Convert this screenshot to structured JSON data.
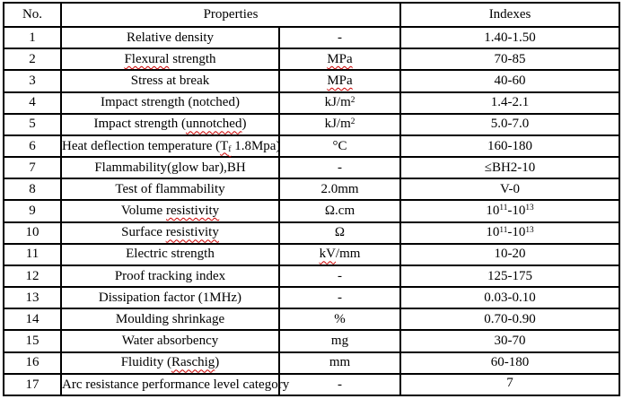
{
  "colors": {
    "background": "#ffffff",
    "text": "#000000",
    "border": "#000000",
    "squiggle": "#cc0000"
  },
  "table": {
    "header": {
      "no": "No.",
      "properties": "Properties",
      "indexes": "Indexes"
    },
    "rows": [
      {
        "no": "1",
        "property": [
          {
            "t": "Relative density"
          }
        ],
        "unit": [
          {
            "t": "-"
          }
        ],
        "index": [
          {
            "t": "1.40-1.50"
          }
        ]
      },
      {
        "no": "2",
        "property": [
          {
            "t": "Flexural",
            "c": "wavy"
          },
          {
            "t": " strength"
          }
        ],
        "unit": [
          {
            "t": "MPa",
            "c": "wavy"
          }
        ],
        "index": [
          {
            "t": "70-85"
          }
        ]
      },
      {
        "no": "3",
        "property": [
          {
            "t": "Stress at break"
          }
        ],
        "unit": [
          {
            "t": "MPa",
            "c": "wavy"
          }
        ],
        "index": [
          {
            "t": "40-60"
          }
        ]
      },
      {
        "no": "4",
        "property": [
          {
            "t": "Impact strength (notched)"
          }
        ],
        "unit": [
          {
            "t": "kJ/m"
          },
          {
            "t": "2",
            "c": "sup"
          }
        ],
        "index": [
          {
            "t": "1.4-2.1"
          }
        ]
      },
      {
        "no": "5",
        "property": [
          {
            "t": "Impact strength ("
          },
          {
            "t": "unnotched",
            "c": "wavy"
          },
          {
            "t": ")"
          }
        ],
        "unit": [
          {
            "t": "kJ/m"
          },
          {
            "t": "2",
            "c": "sup"
          }
        ],
        "index": [
          {
            "t": "5.0-7.0"
          }
        ]
      },
      {
        "no": "6",
        "property": [
          {
            "t": "Heat deflection temperature ("
          },
          {
            "t": "T",
            "c": "wavy"
          },
          {
            "t": "f",
            "c": "wavy sub"
          },
          {
            "t": " 1.8Mpa)"
          }
        ],
        "unit": [
          {
            "t": "°C"
          }
        ],
        "index": [
          {
            "t": "160-180"
          }
        ]
      },
      {
        "no": "7",
        "property": [
          {
            "t": "Flammability(glow bar),BH"
          }
        ],
        "unit": [
          {
            "t": "-"
          }
        ],
        "index": [
          {
            "t": "≤BH2-10"
          }
        ]
      },
      {
        "no": "8",
        "property": [
          {
            "t": "Test of flammability"
          }
        ],
        "unit": [
          {
            "t": "2.0mm"
          }
        ],
        "index": [
          {
            "t": "V-0"
          }
        ]
      },
      {
        "no": "9",
        "property": [
          {
            "t": "Volume "
          },
          {
            "t": "resistivity",
            "c": "wavy"
          }
        ],
        "unit": [
          {
            "t": "Ω.cm"
          }
        ],
        "index": [
          {
            "t": "10"
          },
          {
            "t": "11",
            "c": "sup"
          },
          {
            "t": "-10"
          },
          {
            "t": "13",
            "c": "sup"
          }
        ]
      },
      {
        "no": "10",
        "property": [
          {
            "t": "Surface "
          },
          {
            "t": "resistivity",
            "c": "wavy"
          }
        ],
        "unit": [
          {
            "t": "Ω"
          }
        ],
        "index": [
          {
            "t": "10"
          },
          {
            "t": "11",
            "c": "sup"
          },
          {
            "t": "-10"
          },
          {
            "t": "13",
            "c": "sup"
          }
        ]
      },
      {
        "no": "11",
        "property": [
          {
            "t": "Electric strength"
          }
        ],
        "unit": [
          {
            "t": "kV",
            "c": "wavy"
          },
          {
            "t": "/mm"
          }
        ],
        "index": [
          {
            "t": "10-20"
          }
        ]
      },
      {
        "no": "12",
        "property": [
          {
            "t": "Proof tracking index"
          }
        ],
        "unit": [
          {
            "t": "-"
          }
        ],
        "index": [
          {
            "t": "125-175"
          }
        ]
      },
      {
        "no": "13",
        "property": [
          {
            "t": "Dissipation factor (1MHz)"
          }
        ],
        "unit": [
          {
            "t": "-"
          }
        ],
        "index": [
          {
            "t": "0.03-0.10"
          }
        ]
      },
      {
        "no": "14",
        "property": [
          {
            "t": "Moulding shrinkage"
          }
        ],
        "unit": [
          {
            "t": "%"
          }
        ],
        "index": [
          {
            "t": "0.70-0.90"
          }
        ]
      },
      {
        "no": "15",
        "property": [
          {
            "t": "Water absorbency"
          }
        ],
        "unit": [
          {
            "t": "mg"
          }
        ],
        "index": [
          {
            "t": "30-70"
          }
        ]
      },
      {
        "no": "16",
        "property": [
          {
            "t": "Fluidity ("
          },
          {
            "t": "Raschig",
            "c": "wavy"
          },
          {
            "t": ")"
          }
        ],
        "unit": [
          {
            "t": "mm"
          }
        ],
        "index": [
          {
            "t": "60-180"
          }
        ]
      },
      {
        "no": "17",
        "property": [
          {
            "t": "Arc resistance performance level category"
          }
        ],
        "unit": [
          {
            "t": "-"
          }
        ],
        "index": [
          {
            "t": "7"
          }
        ],
        "top": true
      }
    ]
  }
}
